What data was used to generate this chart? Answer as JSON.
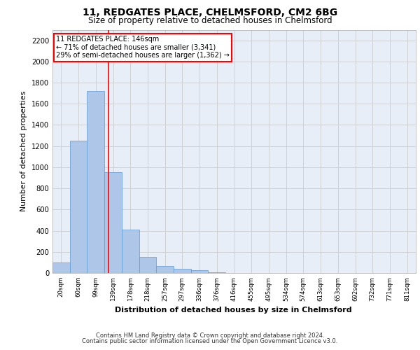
{
  "title_line1": "11, REDGATES PLACE, CHELMSFORD, CM2 6BG",
  "title_line2": "Size of property relative to detached houses in Chelmsford",
  "xlabel": "Distribution of detached houses by size in Chelmsford",
  "ylabel": "Number of detached properties",
  "footer_line1": "Contains HM Land Registry data © Crown copyright and database right 2024.",
  "footer_line2": "Contains public sector information licensed under the Open Government Licence v3.0.",
  "categories": [
    "20sqm",
    "60sqm",
    "99sqm",
    "139sqm",
    "178sqm",
    "218sqm",
    "257sqm",
    "297sqm",
    "336sqm",
    "376sqm",
    "416sqm",
    "455sqm",
    "495sqm",
    "534sqm",
    "574sqm",
    "613sqm",
    "653sqm",
    "692sqm",
    "732sqm",
    "771sqm",
    "811sqm"
  ],
  "values": [
    100,
    1250,
    1720,
    950,
    410,
    150,
    65,
    40,
    25,
    5,
    2,
    1,
    0,
    0,
    0,
    0,
    0,
    0,
    0,
    0,
    0
  ],
  "bar_color": "#aec6e8",
  "bar_edge_color": "#5b9bd5",
  "grid_color": "#cccccc",
  "ylim": [
    0,
    2300
  ],
  "yticks": [
    0,
    200,
    400,
    600,
    800,
    1000,
    1200,
    1400,
    1600,
    1800,
    2000,
    2200
  ],
  "annotation_box_text_line1": "11 REDGATES PLACE: 146sqm",
  "annotation_box_text_line2": "← 71% of detached houses are smaller (3,341)",
  "annotation_box_text_line3": "29% of semi-detached houses are larger (1,362) →",
  "annotation_box_color": "white",
  "annotation_box_edge_color": "red",
  "vline_x_index": 2.75,
  "vline_color": "red",
  "background_color": "#e8eef7"
}
